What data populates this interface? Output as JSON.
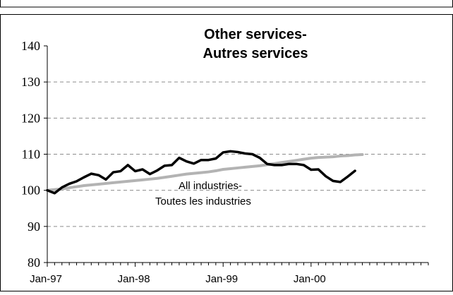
{
  "chart_data": {
    "type": "line",
    "title": "Other services-",
    "subtitle": "Autres services",
    "xlabel": "",
    "ylabel": "",
    "ylim": [
      80,
      140
    ],
    "yticks": [
      80,
      90,
      100,
      110,
      120,
      130,
      140
    ],
    "ytick_labels": [
      "80",
      "90",
      "100",
      "110",
      "120",
      "130",
      "140"
    ],
    "x_start": "Jan-97",
    "x_months": 52,
    "xtick_labels": [
      "Jan-97",
      "Jan-98",
      "Jan-99",
      "Jan-00"
    ],
    "xtick_months": [
      0,
      12,
      24,
      36
    ],
    "grid": "dashed horizontal at 90, 100, 110, 120, 130",
    "legend": "none",
    "annotation": {
      "line1": "All industries-",
      "line2": "Toutes les industries"
    },
    "colors": {
      "other_services": "#000000",
      "all_industries": "#b3b3b3",
      "grid": "#8c8c8c"
    },
    "series": [
      {
        "key": "other_services",
        "values": [
          100,
          99.2,
          100.8,
          101.8,
          102.5,
          103.6,
          104.6,
          104.2,
          103.0,
          105.0,
          105.3,
          107.0,
          105.3,
          105.8,
          104.5,
          105.5,
          106.8,
          107.0,
          109.0,
          108.0,
          107.4,
          108.4,
          108.4,
          108.8,
          110.5,
          110.8,
          110.6,
          110.2,
          110.0,
          109.0,
          107.3,
          107.0,
          107.0,
          107.3,
          107.3,
          107.0,
          105.7,
          105.8,
          103.9,
          102.6,
          102.3,
          103.8,
          105.4
        ]
      },
      {
        "key": "all_industries",
        "values": [
          100,
          100.2,
          100.4,
          100.7,
          101.0,
          101.3,
          101.5,
          101.7,
          101.9,
          102.1,
          102.3,
          102.5,
          102.7,
          102.9,
          103.1,
          103.3,
          103.6,
          103.9,
          104.2,
          104.5,
          104.7,
          104.9,
          105.1,
          105.4,
          105.8,
          106.0,
          106.2,
          106.4,
          106.6,
          106.8,
          107.1,
          107.4,
          107.7,
          108.0,
          108.3,
          108.6,
          108.9,
          109.1,
          109.2,
          109.3,
          109.5,
          109.6,
          109.8,
          109.9
        ]
      }
    ]
  }
}
